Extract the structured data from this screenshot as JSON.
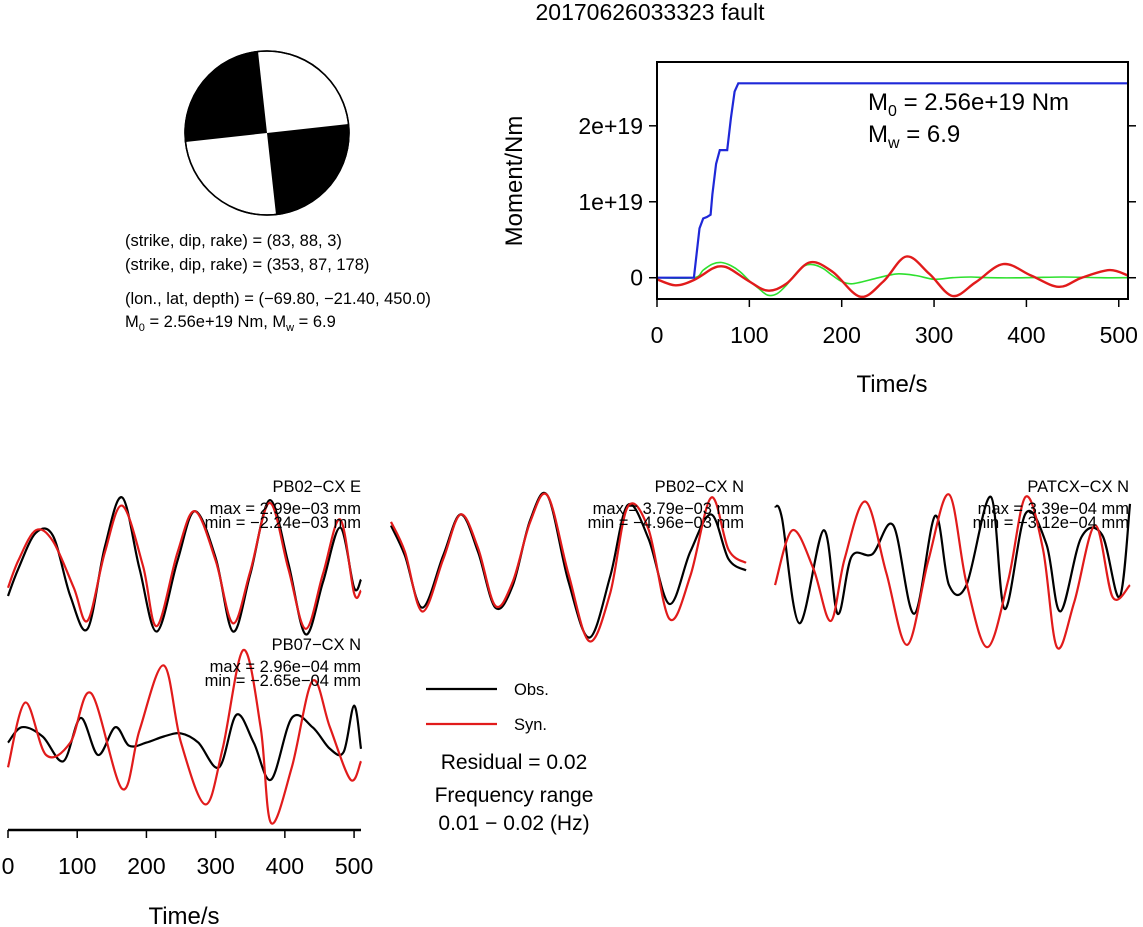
{
  "title": "20170626033323 fault",
  "mechanism": {
    "plane1": "(strike, dip, rake) = (83, 88, 3)",
    "plane2": "(strike, dip, rake) = (353, 87, 178)",
    "location": "(lon., lat, depth) = (−69.80, −21.40, 450.0)",
    "moment_prefix": "M",
    "moment_sub": "0",
    "moment_value": " = 2.56e+19 Nm, M",
    "mw_sub": "w",
    "mw_value": " = 6.9"
  },
  "colors": {
    "obs": "#000000",
    "syn": "#e11b1b",
    "moment": "#1f28d8",
    "rate": "#2ee02e",
    "rate_syn": "#e11b1b"
  },
  "legend": {
    "obs": "Obs.",
    "syn": "Syn.",
    "residual": "Residual = 0.02",
    "freq_line1": "Frequency range",
    "freq_line2": "0.01 − 0.02 (Hz)"
  },
  "chart_data": [
    {
      "type": "line",
      "title": "",
      "xlabel": "Time/s",
      "ylabel": "Moment/Nm",
      "xlim": [
        0,
        510
      ],
      "ylim": [
        -2.8e+18,
        2.84e+19
      ],
      "xticks": [
        "0",
        "100",
        "200",
        "300",
        "400",
        "500"
      ],
      "yticks": [
        "0",
        "1e+19",
        "2e+19"
      ],
      "annotation": {
        "m0_prefix": "M",
        "m0_sub": "0",
        "m0_value": " = 2.56e+19 Nm",
        "mw_prefix": "M",
        "mw_sub": "w",
        "mw_value": " = 6.9"
      },
      "series": [
        {
          "key": "moment",
          "x": [
            0,
            40,
            46,
            50,
            54,
            58,
            60,
            64,
            68,
            72,
            76,
            80,
            84,
            88,
            92,
            100,
            200,
            300,
            400,
            510
          ],
          "y": [
            0,
            0,
            6.5e+18,
            7.8e+18,
            8e+18,
            8.3e+18,
            1.1e+19,
            1.5e+19,
            1.68e+19,
            1.68e+19,
            1.68e+19,
            2.1e+19,
            2.45e+19,
            2.56e+19,
            2.56e+19,
            2.56e+19,
            2.56e+19,
            2.56e+19,
            2.56e+19,
            2.56e+19
          ]
        },
        {
          "key": "rate",
          "x": [
            0,
            40,
            50,
            60,
            70,
            80,
            90,
            100,
            110,
            120,
            130,
            140,
            150,
            160,
            170,
            180,
            190,
            200,
            210,
            220,
            240,
            260,
            280,
            300,
            320,
            340,
            360,
            400,
            440,
            480,
            510
          ],
          "y": [
            0,
            0,
            1e+18,
            1.8e+18,
            2e+18,
            1.6e+18,
            8e+17,
            -4e+17,
            -1.4e+18,
            -2.3e+18,
            -2.1e+18,
            -1e+18,
            5e+17,
            1.6e+18,
            1.7e+18,
            1.2e+18,
            3e+17,
            -5e+17,
            -8e+17,
            -6e+17,
            0.0,
            5e+17,
            3e+17,
            -2e+17,
            0.0,
            1e+17,
            0.0,
            0.0,
            1e+17,
            0.0,
            0.0
          ]
        },
        {
          "key": "rate_syn",
          "x": [
            0,
            20,
            40,
            60,
            70,
            80,
            100,
            120,
            140,
            165,
            190,
            220,
            245,
            270,
            295,
            320,
            345,
            375,
            405,
            435,
            460,
            490,
            510
          ],
          "y": [
            -2e+17,
            -1e+18,
            -3e+17,
            1.2e+18,
            1.5e+18,
            1.1e+18,
            -5e+17,
            -1.7e+18,
            -8e+17,
            2e+18,
            8e+17,
            -2.5e+18,
            -5e+17,
            2.8e+18,
            5e+17,
            -2.4e+18,
            -6e+17,
            1.8e+18,
            3e+17,
            -1.2e+18,
            0.0,
            1e+18,
            3e+17
          ]
        }
      ]
    },
    {
      "type": "line",
      "title": "",
      "xlabel": "Time/s",
      "xlim": [
        0,
        510
      ],
      "xticks": [
        "0",
        "100",
        "200",
        "300",
        "400",
        "500"
      ],
      "panels": [
        {
          "station": "PB02−CX E",
          "max": "max = 2.99e−03 mm",
          "min": "min = −2.24e−03 mm",
          "ylim": [
            -2.3,
            3.0
          ],
          "obs": {
            "x": [
              0,
              15,
              40,
              65,
              90,
              115,
              140,
              165,
              190,
              215,
              245,
              270,
              300,
              325,
              350,
              378,
              405,
              430,
              455,
              480,
              500,
              510
            ],
            "y": [
              -0.8,
              0.2,
              1.5,
              1.4,
              -0.8,
              -2.0,
              1.0,
              2.8,
              0.2,
              -2.1,
              0.5,
              2.3,
              0.6,
              -2.1,
              0.0,
              2.7,
              0.4,
              -2.2,
              -0.3,
              1.7,
              -0.5,
              -0.2
            ]
          },
          "syn": {
            "x": [
              0,
              15,
              40,
              65,
              95,
              115,
              140,
              165,
              195,
              215,
              245,
              270,
              300,
              325,
              350,
              378,
              405,
              430,
              455,
              480,
              500,
              510
            ],
            "y": [
              -0.5,
              0.5,
              1.6,
              1.2,
              -0.5,
              -1.7,
              0.8,
              2.5,
              0.3,
              -1.9,
              0.8,
              2.3,
              0.5,
              -1.8,
              0.1,
              2.6,
              0.2,
              -2.0,
              0.0,
              2.0,
              -0.7,
              -0.6
            ]
          }
        },
        {
          "station": "PB02−CX N",
          "max": "max = 3.79e−03 mm",
          "min": "min = −4.96e−03 mm",
          "ylim": [
            -5.0,
            4.0
          ],
          "obs": {
            "x": [
              0,
              20,
              45,
              75,
              100,
              125,
              150,
              175,
              200,
              225,
              255,
              285,
              315,
              340,
              370,
              400,
              430,
              460,
              485,
              510
            ],
            "y": [
              2.2,
              0.6,
              -2.2,
              0.6,
              2.8,
              0.8,
              -2.2,
              -1.0,
              2.5,
              3.8,
              -0.8,
              -3.8,
              -0.5,
              3.3,
              1.5,
              -2.0,
              0.8,
              2.8,
              0.4,
              -0.2
            ]
          },
          "syn": {
            "x": [
              0,
              20,
              45,
              75,
              100,
              125,
              150,
              175,
              200,
              225,
              255,
              285,
              315,
              340,
              370,
              400,
              430,
              460,
              485,
              510
            ],
            "y": [
              2.4,
              0.8,
              -2.4,
              0.4,
              2.8,
              1.0,
              -2.1,
              -0.8,
              2.4,
              3.8,
              -0.4,
              -4.0,
              -1.4,
              3.2,
              2.0,
              -2.8,
              -0.5,
              3.7,
              0.9,
              0.2
            ]
          }
        },
        {
          "station": "PATCX−CX N",
          "max": "max = 3.39e−04 mm",
          "min": "min = −3.12e−04 mm",
          "ylim": [
            -3.3,
            3.4
          ],
          "obs": {
            "x": [
              0,
              10,
              35,
              70,
              90,
              110,
              140,
              170,
              200,
              230,
              250,
              275,
              310,
              330,
              360,
              390,
              410,
              440,
              470,
              495,
              510
            ],
            "y": [
              2.8,
              2.3,
              -2.1,
              1.8,
              -1.7,
              0.7,
              0.8,
              2.0,
              -1.7,
              2.4,
              -0.5,
              -0.5,
              3.2,
              -1.5,
              2.5,
              1.2,
              -1.6,
              1.5,
              1.6,
              -1.0,
              2.9
            ]
          },
          "syn": {
            "x": [
              0,
              25,
              55,
              80,
              100,
              130,
              160,
              190,
              220,
              250,
              275,
              305,
              335,
              360,
              385,
              405,
              430,
              460,
              485,
              510
            ],
            "y": [
              -0.5,
              1.8,
              0.2,
              -2.0,
              0.6,
              3.0,
              0.0,
              -3.0,
              0.5,
              3.3,
              -0.4,
              -3.1,
              -0.3,
              3.2,
              1.0,
              -3.1,
              -1.2,
              2.0,
              -1.0,
              -0.5
            ]
          }
        },
        {
          "station": "PB07−CX N",
          "max": "max = 2.96e−04 mm",
          "min": "min = −2.65e−04 mm",
          "ylim": [
            -2.7,
            3.0
          ],
          "obs": {
            "x": [
              0,
              20,
              50,
              80,
              105,
              130,
              155,
              175,
              200,
              225,
              250,
              275,
              305,
              330,
              355,
              380,
              410,
              440,
              465,
              485,
              500,
              510
            ],
            "y": [
              0.0,
              0.5,
              0.2,
              -0.6,
              0.8,
              -0.4,
              0.5,
              -0.1,
              0.0,
              0.2,
              0.3,
              0.0,
              -0.8,
              0.9,
              0.0,
              -1.2,
              0.8,
              0.5,
              -0.2,
              -0.3,
              1.2,
              -0.2
            ]
          },
          "syn": {
            "x": [
              0,
              25,
              55,
              90,
              120,
              165,
              190,
              225,
              250,
              285,
              310,
              340,
              365,
              380,
              410,
              440,
              465,
              495,
              510
            ],
            "y": [
              -0.8,
              1.3,
              -0.4,
              0.0,
              1.6,
              -1.5,
              0.4,
              2.5,
              0.0,
              -2.0,
              -0.2,
              3.0,
              0.5,
              -2.6,
              -0.8,
              2.0,
              0.5,
              -1.2,
              -0.6
            ]
          }
        }
      ]
    }
  ]
}
